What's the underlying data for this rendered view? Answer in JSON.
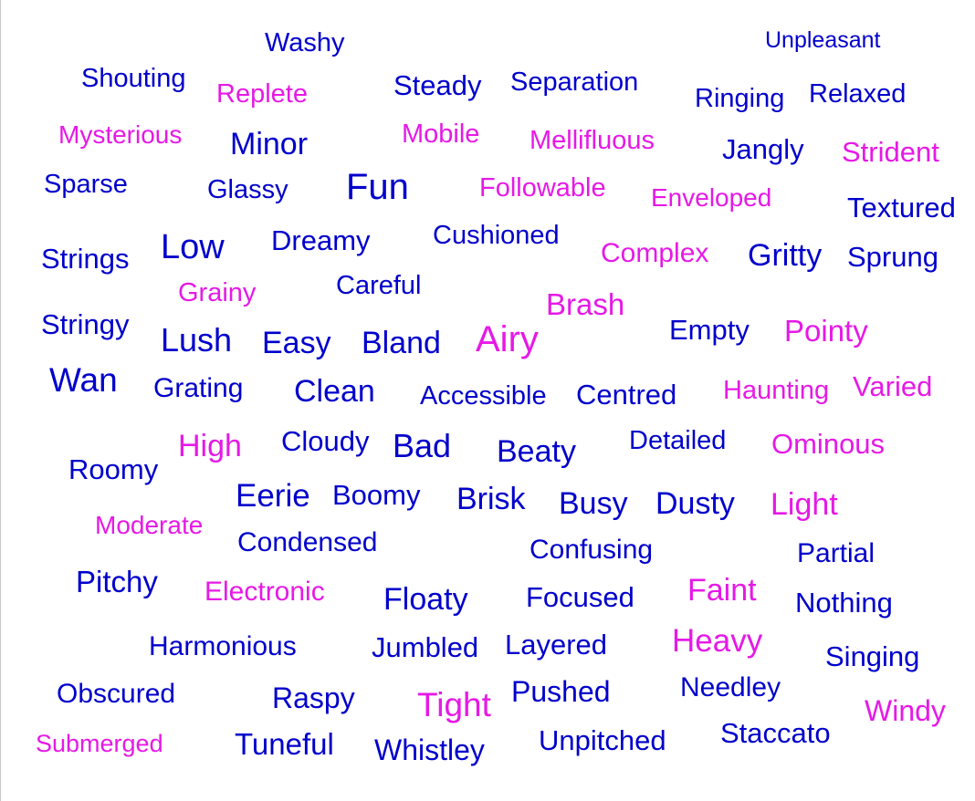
{
  "colors": {
    "blue": "#0000cc",
    "magenta": "#e619e6"
  },
  "words": [
    {
      "text": "Washy",
      "color": "blue"
    },
    {
      "text": "Unpleasant",
      "color": "blue"
    },
    {
      "text": "Shouting",
      "color": "blue"
    },
    {
      "text": "Replete",
      "color": "magenta"
    },
    {
      "text": "Steady",
      "color": "blue"
    },
    {
      "text": "Separation",
      "color": "blue"
    },
    {
      "text": "Ringing",
      "color": "blue"
    },
    {
      "text": "Relaxed",
      "color": "blue"
    },
    {
      "text": "Mysterious",
      "color": "magenta"
    },
    {
      "text": "Minor",
      "color": "blue"
    },
    {
      "text": "Mobile",
      "color": "magenta"
    },
    {
      "text": "Mellifluous",
      "color": "magenta"
    },
    {
      "text": "Jangly",
      "color": "blue"
    },
    {
      "text": "Strident",
      "color": "magenta"
    },
    {
      "text": "Sparse",
      "color": "blue"
    },
    {
      "text": "Glassy",
      "color": "blue"
    },
    {
      "text": "Fun",
      "color": "blue"
    },
    {
      "text": "Followable",
      "color": "magenta"
    },
    {
      "text": "Enveloped",
      "color": "magenta"
    },
    {
      "text": "Textured",
      "color": "blue"
    },
    {
      "text": "Strings",
      "color": "blue"
    },
    {
      "text": "Low",
      "color": "blue"
    },
    {
      "text": "Dreamy",
      "color": "blue"
    },
    {
      "text": "Cushioned",
      "color": "blue"
    },
    {
      "text": "Complex",
      "color": "magenta"
    },
    {
      "text": "Gritty",
      "color": "blue"
    },
    {
      "text": "Sprung",
      "color": "blue"
    },
    {
      "text": "Grainy",
      "color": "magenta"
    },
    {
      "text": "Careful",
      "color": "blue"
    },
    {
      "text": "Brash",
      "color": "magenta"
    },
    {
      "text": "Stringy",
      "color": "blue"
    },
    {
      "text": "Lush",
      "color": "blue"
    },
    {
      "text": "Easy",
      "color": "blue"
    },
    {
      "text": "Bland",
      "color": "blue"
    },
    {
      "text": "Airy",
      "color": "magenta"
    },
    {
      "text": "Empty",
      "color": "blue"
    },
    {
      "text": "Pointy",
      "color": "magenta"
    },
    {
      "text": "Wan",
      "color": "blue"
    },
    {
      "text": "Grating",
      "color": "blue"
    },
    {
      "text": "Clean",
      "color": "blue"
    },
    {
      "text": "Accessible",
      "color": "blue"
    },
    {
      "text": "Centred",
      "color": "blue"
    },
    {
      "text": "Haunting",
      "color": "magenta"
    },
    {
      "text": "Varied",
      "color": "magenta"
    },
    {
      "text": "High",
      "color": "magenta"
    },
    {
      "text": "Cloudy",
      "color": "blue"
    },
    {
      "text": "Bad",
      "color": "blue"
    },
    {
      "text": "Beaty",
      "color": "blue"
    },
    {
      "text": "Detailed",
      "color": "blue"
    },
    {
      "text": "Ominous",
      "color": "magenta"
    },
    {
      "text": "Roomy",
      "color": "blue"
    },
    {
      "text": "Eerie",
      "color": "blue"
    },
    {
      "text": "Boomy",
      "color": "blue"
    },
    {
      "text": "Brisk",
      "color": "blue"
    },
    {
      "text": "Busy",
      "color": "blue"
    },
    {
      "text": "Dusty",
      "color": "blue"
    },
    {
      "text": "Light",
      "color": "magenta"
    },
    {
      "text": "Moderate",
      "color": "magenta"
    },
    {
      "text": "Condensed",
      "color": "blue"
    },
    {
      "text": "Confusing",
      "color": "blue"
    },
    {
      "text": "Partial",
      "color": "blue"
    },
    {
      "text": "Pitchy",
      "color": "blue"
    },
    {
      "text": "Electronic",
      "color": "magenta"
    },
    {
      "text": "Floaty",
      "color": "blue"
    },
    {
      "text": "Focused",
      "color": "blue"
    },
    {
      "text": "Faint",
      "color": "magenta"
    },
    {
      "text": "Nothing",
      "color": "blue"
    },
    {
      "text": "Harmonious",
      "color": "blue"
    },
    {
      "text": "Jumbled",
      "color": "blue"
    },
    {
      "text": "Layered",
      "color": "blue"
    },
    {
      "text": "Heavy",
      "color": "magenta"
    },
    {
      "text": "Singing",
      "color": "blue"
    },
    {
      "text": "Obscured",
      "color": "blue"
    },
    {
      "text": "Raspy",
      "color": "blue"
    },
    {
      "text": "Tight",
      "color": "magenta"
    },
    {
      "text": "Pushed",
      "color": "blue"
    },
    {
      "text": "Needley",
      "color": "blue"
    },
    {
      "text": "Windy",
      "color": "magenta"
    },
    {
      "text": "Submerged",
      "color": "magenta"
    },
    {
      "text": "Tuneful",
      "color": "blue"
    },
    {
      "text": "Whistley",
      "color": "blue"
    },
    {
      "text": "Unpitched",
      "color": "blue"
    },
    {
      "text": "Staccato",
      "color": "blue"
    }
  ]
}
